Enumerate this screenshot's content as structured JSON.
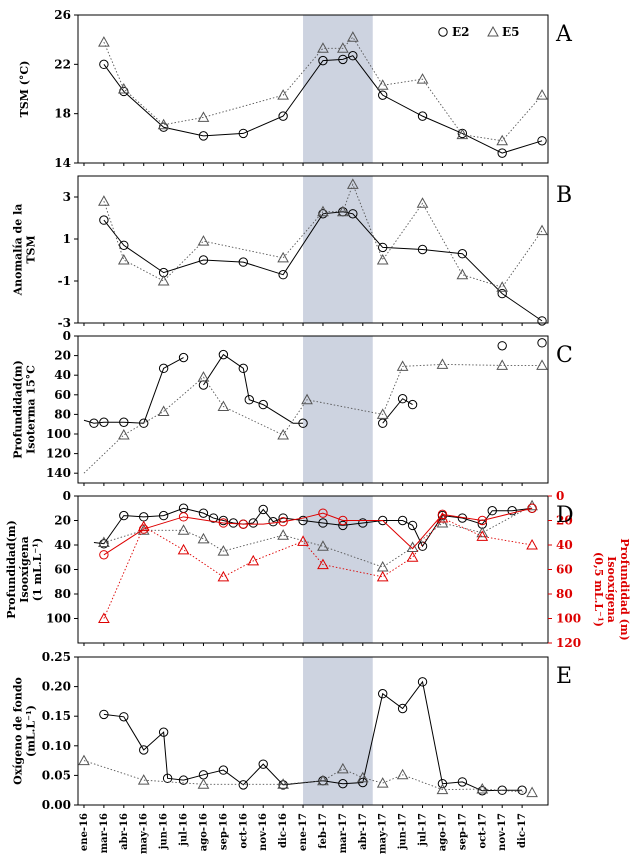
{
  "x_labels": [
    "ene-16",
    "mar-16",
    "abr-16",
    "may-16",
    "jun-16",
    "jul-16",
    "ago-16",
    "sep-16",
    "oct-16",
    "nov-16",
    "dic-16",
    "ene-17",
    "feb-17",
    "mar-17",
    "abr-17",
    "may-17",
    "jun-17",
    "jul-17",
    "ago-17",
    "sep-17",
    "oct-17",
    "nov-17",
    "dic-17"
  ],
  "shade": {
    "from": 11,
    "to": 14.5,
    "color": "#cdd3e0"
  },
  "colors": {
    "e2": "#000000",
    "e5": "#555555",
    "red": "#dd0000"
  },
  "legend": {
    "e2": "E2",
    "e5": "E5"
  },
  "chart_data": [
    {
      "id": "A",
      "type": "line",
      "panel_label": "A",
      "ylabel": [
        "TSM (°C)"
      ],
      "ylim": [
        14,
        26
      ],
      "yticks": [
        14,
        18,
        22,
        26
      ],
      "series": [
        {
          "name": "E2",
          "marker": "circle",
          "style": "solid",
          "color": "#000000",
          "points": [
            [
              1,
              22.0
            ],
            [
              2,
              19.8
            ],
            [
              4,
              16.9
            ],
            [
              6,
              16.2
            ],
            [
              8,
              16.4
            ],
            [
              10,
              17.8
            ],
            [
              12,
              22.3
            ],
            [
              13,
              22.4
            ],
            [
              13.5,
              22.7
            ],
            [
              15,
              19.5
            ],
            [
              17,
              17.8
            ],
            [
              19,
              16.4
            ],
            [
              21,
              14.8
            ],
            [
              23,
              15.8
            ]
          ]
        },
        {
          "name": "E5",
          "marker": "triangle",
          "style": "dotted",
          "color": "#555555",
          "points": [
            [
              1,
              23.8
            ],
            [
              2,
              20.0
            ],
            [
              4,
              17.1
            ],
            [
              6,
              17.7
            ],
            [
              10,
              19.5
            ],
            [
              12,
              23.3
            ],
            [
              13,
              23.3
            ],
            [
              13.5,
              24.2
            ],
            [
              15,
              20.3
            ],
            [
              17,
              20.8
            ],
            [
              19,
              16.3
            ],
            [
              21,
              15.8
            ],
            [
              23,
              19.5
            ]
          ]
        }
      ]
    },
    {
      "id": "B",
      "type": "line",
      "panel_label": "B",
      "ylabel": [
        "Anomalía de la",
        "TSM"
      ],
      "ylim": [
        -3,
        4
      ],
      "yticks": [
        -3,
        -1,
        1,
        3
      ],
      "series": [
        {
          "name": "E2",
          "marker": "circle",
          "style": "solid",
          "color": "#000000",
          "points": [
            [
              1,
              1.9
            ],
            [
              2,
              0.7
            ],
            [
              4,
              -0.6
            ],
            [
              6,
              0.0
            ],
            [
              8,
              -0.1
            ],
            [
              10,
              -0.7
            ],
            [
              12,
              2.2
            ],
            [
              13,
              2.3
            ],
            [
              13.5,
              2.2
            ],
            [
              15,
              0.6
            ],
            [
              17,
              0.5
            ],
            [
              19,
              0.3
            ],
            [
              21,
              -1.6
            ],
            [
              23,
              -2.9
            ]
          ]
        },
        {
          "name": "E5",
          "marker": "triangle",
          "style": "dotted",
          "color": "#555555",
          "points": [
            [
              1,
              2.8
            ],
            [
              2,
              0.0
            ],
            [
              4,
              -1.0
            ],
            [
              6,
              0.9
            ],
            [
              10,
              0.1
            ],
            [
              12,
              2.3
            ],
            [
              13,
              2.3
            ],
            [
              13.5,
              3.6
            ],
            [
              15,
              0.0
            ],
            [
              17,
              2.7
            ],
            [
              19,
              -0.7
            ],
            [
              21,
              -1.3
            ],
            [
              23,
              1.4
            ]
          ]
        }
      ]
    },
    {
      "id": "C",
      "type": "line",
      "panel_label": "C",
      "ylabel": [
        "Profundidad(m)",
        "Isoterma 15°C"
      ],
      "ylim": [
        0,
        150
      ],
      "reversed": true,
      "yticks": [
        0,
        20,
        40,
        60,
        80,
        100,
        120,
        140
      ],
      "series": [
        {
          "name": "E2",
          "marker": "circle",
          "style": "solid",
          "color": "#000000",
          "points": [
            [
              0,
              86
            ],
            [
              0.5,
              89
            ],
            [
              1,
              88
            ],
            [
              2,
              88
            ],
            [
              3,
              89
            ],
            [
              4,
              33
            ],
            [
              5,
              22
            ]
          ],
          "marker_from": 1
        },
        {
          "name": "E2",
          "marker": "circle",
          "style": "solid",
          "color": "#000000",
          "points": [
            [
              6,
              50
            ],
            [
              7,
              19
            ],
            [
              8,
              33
            ],
            [
              8.3,
              65
            ],
            [
              9,
              70
            ],
            [
              10.5,
              89
            ],
            [
              11,
              89
            ]
          ],
          "marker_idx": [
            0,
            1,
            2,
            3,
            4,
            6
          ]
        },
        {
          "name": "E2",
          "marker": "circle",
          "style": "solid",
          "color": "#000000",
          "points": [
            [
              15,
              89
            ],
            [
              16,
              64
            ],
            [
              16.5,
              70
            ]
          ]
        },
        {
          "name": "E2",
          "marker": "circle",
          "style": "none",
          "color": "#000000",
          "points": [
            [
              21,
              10
            ],
            [
              23,
              7
            ]
          ]
        },
        {
          "name": "E5",
          "marker": "triangle",
          "style": "dotted",
          "color": "#555555",
          "points": [
            [
              0,
              140
            ],
            [
              2,
              101
            ],
            [
              4,
              77
            ],
            [
              6,
              42
            ],
            [
              7,
              72
            ],
            [
              10,
              101
            ],
            [
              11.2,
              65
            ],
            [
              15,
              80
            ],
            [
              16,
              31
            ],
            [
              18,
              29
            ],
            [
              21,
              30
            ],
            [
              23,
              30
            ]
          ],
          "marker_from": 1
        }
      ]
    },
    {
      "id": "D",
      "type": "line",
      "panel_label": "D",
      "ylabel": [
        "Profundidad(m)",
        "Isooxígena",
        "(1 mL.L⁻¹)"
      ],
      "ylabel_right": [
        "Profundidad (m)",
        "Isooxígena",
        "(0,5 mL.L⁻¹)"
      ],
      "ylim": [
        0,
        120
      ],
      "reversed": true,
      "yticks": [
        0,
        20,
        40,
        60,
        80,
        100
      ],
      "yticks_right": [
        0,
        20,
        40,
        60,
        80,
        100,
        120
      ],
      "series": [
        {
          "name": "E2",
          "marker": "circle",
          "style": "solid",
          "color": "#000000",
          "points": [
            [
              0.5,
              38
            ],
            [
              1,
              39
            ],
            [
              2,
              16
            ],
            [
              3,
              17
            ],
            [
              4,
              16
            ],
            [
              5,
              10
            ],
            [
              6,
              14
            ],
            [
              6.5,
              18
            ],
            [
              7,
              20
            ],
            [
              7.5,
              22
            ],
            [
              8,
              23
            ],
            [
              8.5,
              22
            ],
            [
              9,
              11
            ],
            [
              9.5,
              21
            ],
            [
              10,
              18
            ],
            [
              11,
              20
            ],
            [
              12,
              22
            ],
            [
              13,
              24
            ],
            [
              14,
              22
            ],
            [
              15,
              20
            ],
            [
              16,
              20
            ],
            [
              16.5,
              24
            ],
            [
              17,
              41
            ],
            [
              18,
              16
            ],
            [
              19,
              18
            ],
            [
              20,
              23
            ],
            [
              20.5,
              12
            ],
            [
              21.5,
              12
            ],
            [
              22.5,
              10
            ]
          ],
          "marker_from": 1
        },
        {
          "name": "E5",
          "marker": "triangle",
          "style": "dotted",
          "color": "#555555",
          "points": [
            [
              1,
              38
            ],
            [
              3,
              28
            ],
            [
              5,
              28
            ],
            [
              6,
              35
            ],
            [
              7,
              45
            ],
            [
              10,
              32
            ],
            [
              12,
              41
            ],
            [
              15,
              58
            ],
            [
              16.5,
              42
            ],
            [
              18,
              22
            ],
            [
              20,
              30
            ],
            [
              22.5,
              8
            ]
          ]
        },
        {
          "name": "E2",
          "marker": "circle",
          "style": "solid",
          "color": "#dd0000",
          "points": [
            [
              1,
              48
            ],
            [
              3,
              27
            ],
            [
              5,
              17
            ],
            [
              7,
              22
            ],
            [
              8,
              23
            ],
            [
              9,
              23
            ],
            [
              10,
              21
            ],
            [
              11,
              18
            ],
            [
              12,
              14
            ],
            [
              13,
              20
            ],
            [
              15,
              20
            ],
            [
              16.5,
              43
            ],
            [
              18,
              15
            ],
            [
              20,
              20
            ],
            [
              22.5,
              10
            ]
          ],
          "marker_idx": [
            0,
            1,
            2,
            3,
            4,
            6,
            8,
            9,
            12,
            13,
            14
          ]
        },
        {
          "name": "E5",
          "marker": "triangle",
          "style": "dotted",
          "color": "#dd0000",
          "points": [
            [
              1,
              100
            ],
            [
              3,
              25
            ],
            [
              5,
              44
            ],
            [
              7,
              66
            ],
            [
              8.5,
              53
            ],
            [
              11,
              37
            ],
            [
              12,
              56
            ],
            [
              15,
              66
            ],
            [
              16.5,
              50
            ],
            [
              18,
              18
            ],
            [
              20,
              33
            ],
            [
              22.5,
              40
            ]
          ]
        }
      ]
    },
    {
      "id": "E",
      "type": "line",
      "panel_label": "E",
      "ylabel": [
        "Oxígeno de fondo",
        "(mL.L⁻¹)"
      ],
      "ylim": [
        0,
        0.25
      ],
      "yticks": [
        0.0,
        0.05,
        0.1,
        0.15,
        0.2,
        0.25
      ],
      "decimals": 2,
      "series": [
        {
          "name": "E2",
          "marker": "circle",
          "style": "solid",
          "color": "#000000",
          "points": [
            [
              1,
              0.153
            ],
            [
              2,
              0.149
            ],
            [
              3,
              0.093
            ],
            [
              4,
              0.123
            ],
            [
              4.2,
              0.045
            ],
            [
              5,
              0.042
            ],
            [
              6,
              0.051
            ],
            [
              7,
              0.059
            ],
            [
              8,
              0.034
            ],
            [
              9,
              0.069
            ],
            [
              10,
              0.034
            ],
            [
              12,
              0.041
            ],
            [
              13,
              0.036
            ],
            [
              14,
              0.038
            ],
            [
              15,
              0.188
            ],
            [
              16,
              0.163
            ],
            [
              17,
              0.208
            ],
            [
              18,
              0.036
            ],
            [
              19,
              0.039
            ],
            [
              20,
              0.024
            ],
            [
              21,
              0.025
            ],
            [
              22,
              0.025
            ]
          ]
        },
        {
          "name": "E5",
          "marker": "triangle",
          "style": "dotted",
          "color": "#555555",
          "points": [
            [
              0,
              0.075
            ],
            [
              3,
              0.042
            ],
            [
              6,
              0.035
            ],
            [
              10,
              0.035
            ],
            [
              12,
              0.041
            ],
            [
              13,
              0.061
            ],
            [
              14,
              0.046
            ],
            [
              15,
              0.037
            ],
            [
              16,
              0.051
            ],
            [
              18,
              0.026
            ],
            [
              20,
              0.027
            ],
            [
              22.5,
              0.021
            ]
          ]
        }
      ]
    }
  ]
}
